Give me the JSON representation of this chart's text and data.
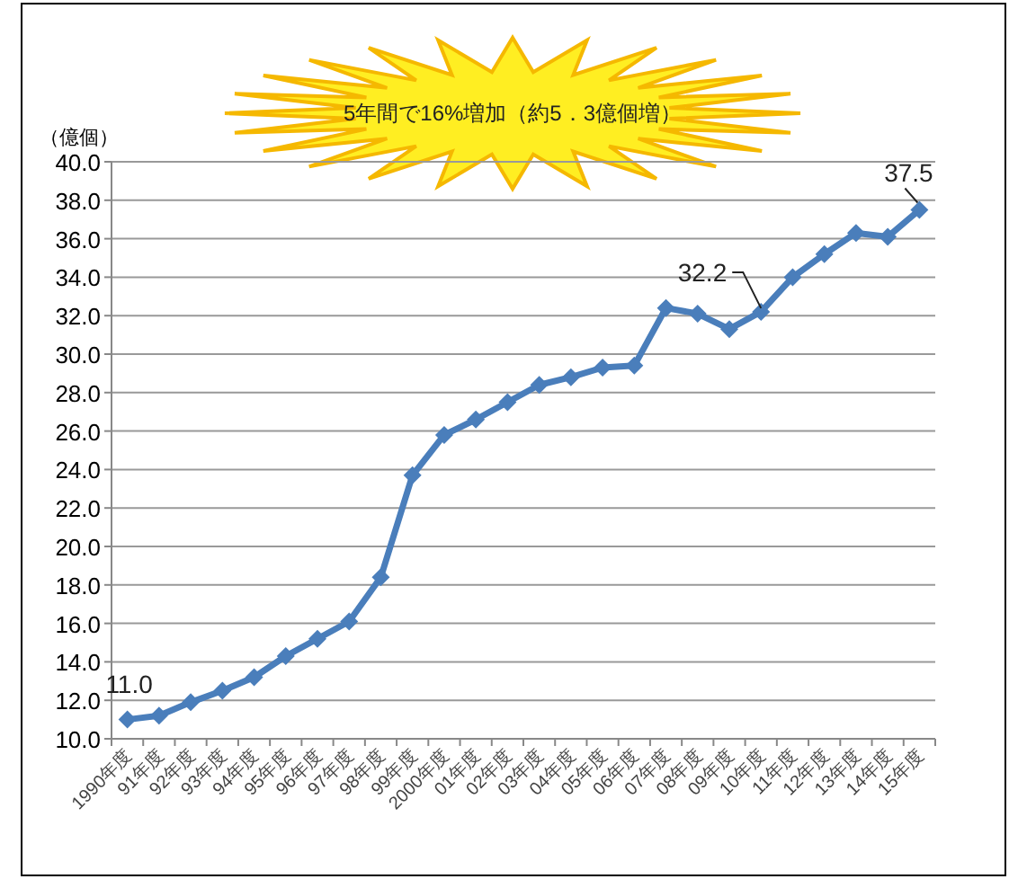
{
  "chart_data": {
    "type": "line",
    "title": "5年間で16%増加（約5．3億個増）",
    "ylabel": "（億個）",
    "categories": [
      "1990年度",
      "91年度",
      "92年度",
      "93年度",
      "94年度",
      "95年度",
      "96年度",
      "97年度",
      "98年度",
      "99年度",
      "2000年度",
      "01年度",
      "02年度",
      "03年度",
      "04年度",
      "05年度",
      "06年度",
      "07年度",
      "08年度",
      "09年度",
      "10年度",
      "11年度",
      "12年度",
      "13年度",
      "14年度",
      "15年度"
    ],
    "series": [
      {
        "color": "#4a7ebb",
        "values": [
          11.0,
          11.2,
          11.9,
          12.5,
          13.2,
          14.3,
          15.2,
          16.1,
          18.4,
          23.7,
          25.8,
          26.6,
          27.5,
          28.4,
          28.8,
          29.3,
          29.4,
          32.4,
          32.1,
          31.3,
          32.2,
          34.0,
          35.2,
          36.3,
          36.1,
          37.5
        ],
        "value_labels": [
          "11.0",
          null,
          null,
          null,
          null,
          null,
          null,
          null,
          null,
          null,
          null,
          null,
          null,
          null,
          null,
          null,
          null,
          null,
          null,
          null,
          "32.2",
          null,
          null,
          null,
          null,
          "37.5"
        ]
      }
    ],
    "ylim": [
      10,
      40
    ],
    "yticks": [
      {
        "value": 10,
        "label": "10.0"
      },
      {
        "value": 12,
        "label": "12.0"
      },
      {
        "value": 14,
        "label": "14.0"
      },
      {
        "value": 16,
        "label": "16.0"
      },
      {
        "value": 18,
        "label": "18.0"
      },
      {
        "value": 20,
        "label": "20.0"
      },
      {
        "value": 22,
        "label": "22.0"
      },
      {
        "value": 24,
        "label": "24.0"
      },
      {
        "value": 26,
        "label": "26.0"
      },
      {
        "value": 28,
        "label": "28.0"
      },
      {
        "value": 30,
        "label": "30.0"
      },
      {
        "value": 32,
        "label": "32.0"
      },
      {
        "value": 34,
        "label": "34.0"
      },
      {
        "value": 36,
        "label": "36.0"
      },
      {
        "value": 38,
        "label": "38.0"
      },
      {
        "value": 40,
        "label": "40.0"
      }
    ],
    "grid": "y",
    "marker": "diamond",
    "line_style": "solid"
  }
}
